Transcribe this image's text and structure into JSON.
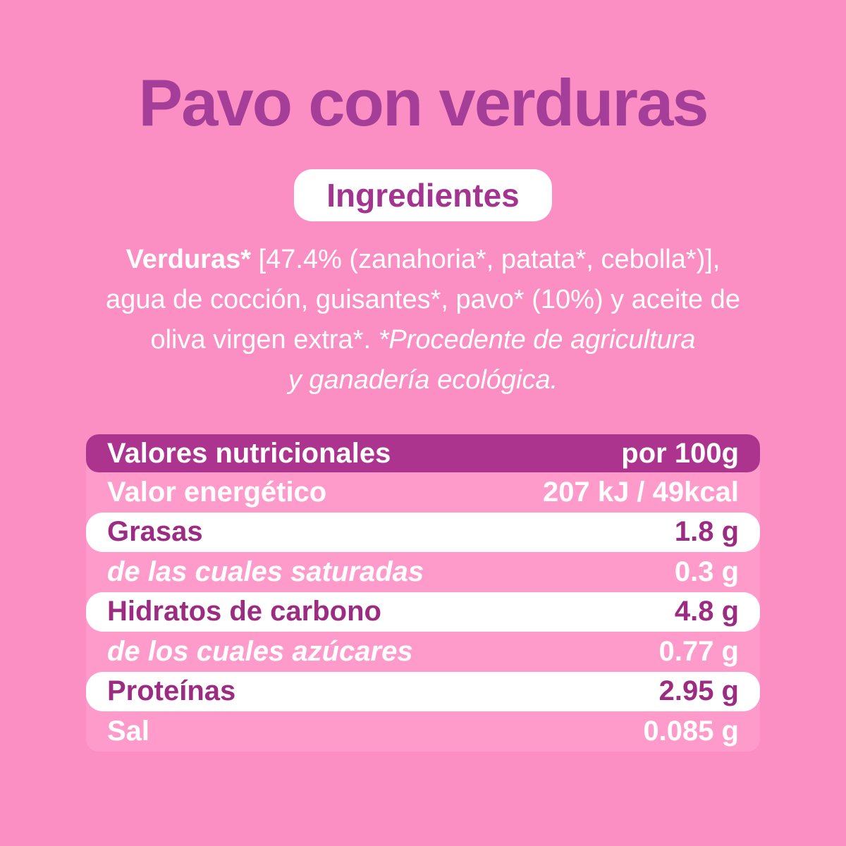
{
  "title": "Pavo con verduras",
  "badge": {
    "label": "Ingredientes"
  },
  "ingredients": {
    "line1_bold": "Verduras*",
    "line1_rest": " [47.4% (zanahoria*, patata*, cebolla*)],",
    "line2": "agua de cocción, guisantes*, pavo* (10%) y aceite de",
    "line3_regular": "oliva virgen extra*. ",
    "line3_italic": "*Procedente de agricultura",
    "line4_italic": "y ganadería ecológica."
  },
  "nutrition_table": {
    "header": {
      "label": "Valores nutricionales",
      "value": "por 100g"
    },
    "rows": [
      {
        "label": "Valor energético",
        "value": "207 kJ / 49kcal"
      },
      {
        "label": "Grasas",
        "value": "1.8 g"
      },
      {
        "label": "de las cuales saturadas",
        "value": "0.3 g"
      },
      {
        "label": "Hidratos de carbono",
        "value": "4.8 g"
      },
      {
        "label": "de los cuales azúcares",
        "value": "0.77 g"
      },
      {
        "label": "Proteínas",
        "value": "2.95 g"
      },
      {
        "label": "Sal",
        "value": "0.085 g"
      }
    ]
  },
  "colors": {
    "page_background": "#FB8FC3",
    "table_background": "#FF9BCB",
    "header_bar": "#AC348F",
    "title_text": "#A53E98",
    "magenta_text": "#9B2C81",
    "body_text": "#FFFFFF"
  }
}
